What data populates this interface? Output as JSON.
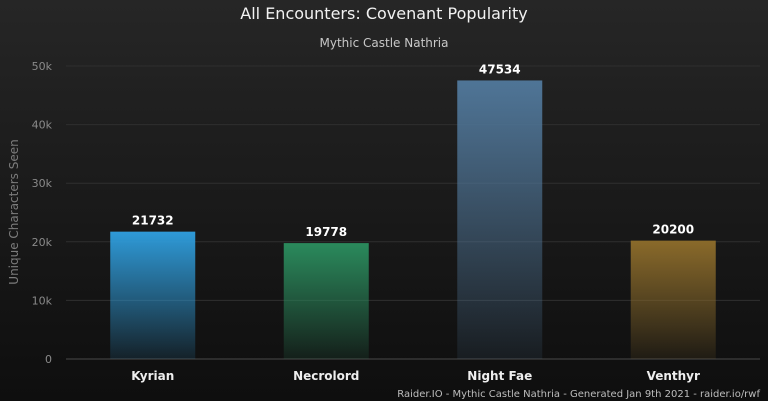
{
  "chart_data": {
    "type": "bar",
    "title": "All Encounters: Covenant Popularity",
    "subtitle": "Mythic Castle Nathria",
    "ylabel": "Unique Characters Seen",
    "xlabel": "",
    "categories": [
      "Kyrian",
      "Necrolord",
      "Night Fae",
      "Venthyr"
    ],
    "values": [
      21732,
      19778,
      47534,
      20200
    ],
    "data_labels": [
      "21732",
      "19778",
      "47534",
      "20200"
    ],
    "colors": [
      "#2e9ad8",
      "#2a8a5c",
      "#4f7597",
      "#8a6a2a"
    ],
    "ylim": [
      0,
      50000
    ],
    "yticks": [
      0,
      10000,
      20000,
      30000,
      40000,
      50000
    ],
    "ytick_labels": [
      "0",
      "10k",
      "20k",
      "30k",
      "40k",
      "50k"
    ],
    "grid": true,
    "legend": "none"
  },
  "credits": "Raider.IO - Mythic Castle Nathria - Generated Jan 9th 2021 - raider.io/rwf"
}
